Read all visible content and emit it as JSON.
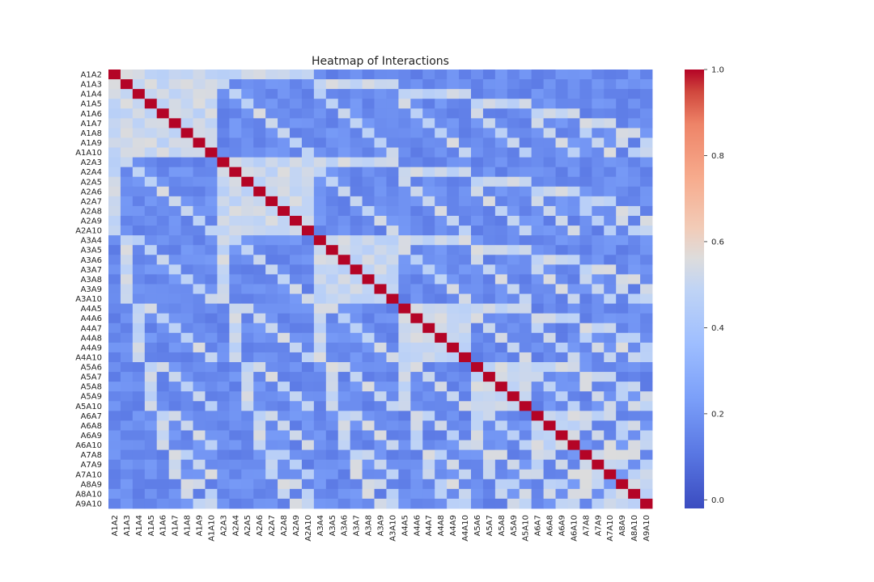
{
  "chart_data": {
    "type": "heatmap",
    "title": "Heatmap of Interactions",
    "xlabel": "",
    "ylabel": "",
    "labels": [
      "A1A2",
      "A1A3",
      "A1A4",
      "A1A5",
      "A1A6",
      "A1A7",
      "A1A8",
      "A1A9",
      "A1A10",
      "A2A3",
      "A2A4",
      "A2A5",
      "A2A6",
      "A2A7",
      "A2A8",
      "A2A9",
      "A2A10",
      "A3A4",
      "A3A5",
      "A3A6",
      "A3A7",
      "A3A8",
      "A3A9",
      "A3A10",
      "A4A5",
      "A4A6",
      "A4A7",
      "A4A8",
      "A4A9",
      "A4A10",
      "A5A6",
      "A5A7",
      "A5A8",
      "A5A9",
      "A5A10",
      "A6A7",
      "A6A8",
      "A6A9",
      "A6A10",
      "A7A8",
      "A7A9",
      "A7A10",
      "A8A9",
      "A8A10",
      "A9A10"
    ],
    "value_model": "symmetric pairwise matrix with 1.0 on the diagonal; an off-diagonal value is the weighted overlap of shared items between row pair and column pair (shared item 0.34, not shared -0.02), plus a noise term of -0.05 to +0.05 from the hash of both label strings, clamped to [-0.02, 1.0]. These are approximate readings of the picture, not exact data.",
    "colorbar": {
      "min": -0.02,
      "max": 1.0,
      "ticks": [
        "1.0",
        "0.8",
        "0.6",
        "0.4",
        "0.2",
        "0.0"
      ]
    },
    "colormap": "coolwarm",
    "colors": {
      "low": "#3b4cc0",
      "mid": "#dddddd",
      "high": "#b40426"
    },
    "grid": false,
    "legend": "colorbar-right"
  }
}
